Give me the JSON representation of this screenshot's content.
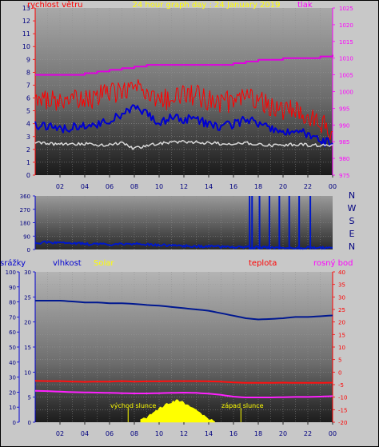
{
  "colors": {
    "wind": "#ff2020",
    "gust": "#ff0000",
    "avg": "#d8d8d8",
    "pressure": "#e000e0",
    "direction": "#0018c8",
    "humidity": "#001890",
    "temperature": "#ff1010",
    "dewpoint": "#ff20ff",
    "solar": "#ffff00",
    "axisBlue": "#0000d0",
    "axisRed": "#ff0000",
    "axisMagenta": "#ff00ff",
    "titleYellow": "#ffff00",
    "frame": "#000000"
  },
  "chart_data": [
    {
      "type": "line",
      "title": "24 hour graph day : 24 January 2019",
      "left_axis_label": "rychlost větru",
      "right_axis_label": "tlak",
      "x_ticks": [
        "02",
        "04",
        "06",
        "08",
        "10",
        "12",
        "14",
        "16",
        "18",
        "20",
        "22",
        "00"
      ],
      "left_ticks": [
        "0",
        "1",
        "2",
        "3",
        "4",
        "5",
        "6",
        "7",
        "8",
        "9",
        "10",
        "11",
        "12",
        "13"
      ],
      "right_ticks": [
        "975",
        "980",
        "985",
        "990",
        "995",
        "1000",
        "1005",
        "1010",
        "1015",
        "1020",
        "1025"
      ],
      "ylim_left": [
        0,
        13
      ],
      "ylim_right": [
        975,
        1025
      ],
      "x_hours": [
        0,
        1,
        2,
        3,
        4,
        5,
        6,
        7,
        8,
        9,
        10,
        11,
        12,
        13,
        14,
        15,
        16,
        17,
        18,
        19,
        20,
        21,
        22,
        23,
        24
      ],
      "series": [
        {
          "key": "gust",
          "axis": "left",
          "values": [
            5.8,
            5.9,
            5.7,
            5.8,
            6.0,
            6.1,
            6.4,
            6.6,
            6.8,
            6.4,
            5.9,
            6.0,
            6.3,
            6.2,
            5.8,
            5.6,
            5.8,
            6.0,
            5.9,
            5.4,
            5.0,
            4.9,
            4.8,
            4.2,
            3.4
          ]
        },
        {
          "key": "wind",
          "axis": "left",
          "values": [
            3.9,
            3.8,
            3.6,
            3.7,
            3.9,
            3.9,
            4.3,
            4.6,
            5.2,
            4.7,
            4.0,
            4.6,
            4.3,
            4.4,
            3.9,
            3.7,
            4.0,
            4.3,
            4.1,
            3.7,
            3.4,
            3.3,
            3.2,
            2.6,
            2.5
          ]
        },
        {
          "key": "avg",
          "axis": "left",
          "values": [
            2.5,
            2.45,
            2.4,
            2.4,
            2.45,
            2.3,
            2.4,
            2.5,
            2.05,
            2.35,
            2.45,
            2.55,
            2.6,
            2.55,
            2.5,
            2.45,
            2.4,
            2.5,
            2.4,
            2.3,
            2.35,
            2.4,
            2.35,
            2.3,
            2.35
          ]
        },
        {
          "key": "pressure",
          "axis": "right",
          "values": [
            1005,
            1005,
            1005,
            1005,
            1005.5,
            1006,
            1006.5,
            1007,
            1007.5,
            1008,
            1008,
            1008,
            1008,
            1008,
            1008,
            1008,
            1008.5,
            1009,
            1009.5,
            1009.5,
            1010,
            1010,
            1010,
            1010.5,
            1011
          ]
        }
      ]
    },
    {
      "type": "line",
      "title": "",
      "right_labels": [
        "N",
        "W",
        "S",
        "E",
        "N"
      ],
      "left_ticks": [
        "0",
        "90",
        "180",
        "270",
        "360"
      ],
      "ylim": [
        0,
        360
      ],
      "series": [
        {
          "key": "direction",
          "values": [
            42,
            50,
            45,
            40,
            38,
            35,
            33,
            40,
            38,
            35,
            30,
            28,
            25,
            22,
            20,
            18,
            16,
            15,
            14,
            13,
            12,
            12,
            12,
            12,
            12
          ]
        }
      ],
      "spikes_hours": [
        17.3,
        17.5,
        18.1,
        18.9,
        19.7,
        20.5,
        21.3,
        22.2
      ],
      "spike_value": 360
    },
    {
      "type": "line",
      "title": "",
      "legend": [
        "srážky",
        "vlhkost",
        "Solar",
        "teplota",
        "rosný bod"
      ],
      "ticks_rain": [
        "0",
        "10",
        "20",
        "30",
        "40",
        "50",
        "60",
        "70",
        "80",
        "90",
        "100"
      ],
      "ticks_humidity": [
        "0",
        "5",
        "10",
        "15",
        "20",
        "25",
        "30"
      ],
      "ticks_temp": [
        "-20",
        "-15",
        "-10",
        "-5",
        "0",
        "5",
        "10",
        "15",
        "20",
        "25",
        "30",
        "35",
        "40"
      ],
      "ylim_temp": [
        -20,
        40
      ],
      "annotations": [
        "východ slunce",
        "západ slunce"
      ],
      "sunrise_hour": 7.5,
      "sunset_hour": 16.6,
      "series": [
        {
          "key": "humidity",
          "axis": "temp",
          "values": [
            28.5,
            28.5,
            28.5,
            28.2,
            27.8,
            27.8,
            27.5,
            27.5,
            27.2,
            26.8,
            26.5,
            26,
            25.5,
            25,
            24.5,
            23.5,
            22.5,
            21.5,
            21,
            21.2,
            21.5,
            22,
            22,
            22.3,
            22.6
          ]
        },
        {
          "key": "temperature",
          "axis": "temp",
          "values": [
            -3.5,
            -3.6,
            -3.6,
            -3.8,
            -3.9,
            -3.8,
            -3.8,
            -3.6,
            -3.8,
            -3.7,
            -3.7,
            -3.6,
            -3.6,
            -3.6,
            -3.7,
            -3.8,
            -4.1,
            -4.3,
            -4.3,
            -4.3,
            -4.2,
            -4.3,
            -4.3,
            -4.3,
            -4.2
          ]
        },
        {
          "key": "dewpoint",
          "axis": "temp",
          "values": [
            -7.5,
            -7.6,
            -7.8,
            -8,
            -8.1,
            -8.2,
            -8.3,
            -8.4,
            -8.5,
            -8.5,
            -8.4,
            -8.3,
            -8.2,
            -8.3,
            -8.6,
            -9.1,
            -9.8,
            -10.1,
            -10.1,
            -10.1,
            -10,
            -9.9,
            -9.9,
            -9.8,
            -9.6
          ]
        }
      ],
      "solar_hours": [
        8.5,
        9,
        9.5,
        10,
        10.5,
        11,
        11.5,
        12,
        12.5,
        13,
        13.5,
        14,
        14.5
      ],
      "solar_values": [
        0.3,
        1.0,
        1.9,
        2.8,
        3.5,
        4.0,
        4.3,
        3.9,
        3.2,
        2.3,
        1.4,
        0.6,
        0.1
      ],
      "solar_axis_max": 30
    }
  ]
}
